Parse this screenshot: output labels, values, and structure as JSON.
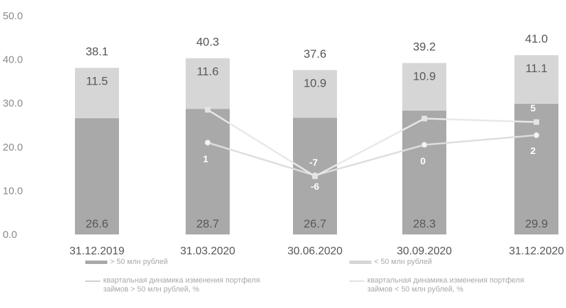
{
  "chart_data": {
    "type": "bar",
    "stacked": true,
    "categories": [
      "31.12.2019",
      "31.03.2020",
      "30.06.2020",
      "30.09.2020",
      "31.12.2020"
    ],
    "yticks": [
      "0.0",
      "10.0",
      "20.0",
      "30.0",
      "40.0",
      "50.0"
    ],
    "ylim": [
      0,
      50
    ],
    "grid": false,
    "legend_position": "bottom",
    "series": [
      {
        "name": "> 50 млн рублей",
        "type": "bar",
        "color": "#a9a9a9",
        "values": [
          26.6,
          28.7,
          26.7,
          28.3,
          29.9
        ],
        "labels": [
          "26.6",
          "28.7",
          "26.7",
          "28.3",
          "29.9"
        ]
      },
      {
        "name": "< 50 млн рублей",
        "type": "bar",
        "color": "#d6d6d6",
        "values": [
          11.5,
          11.6,
          10.9,
          10.9,
          11.1
        ],
        "labels": [
          "11.5",
          "11.6",
          "10.9",
          "10.9",
          "11.1"
        ]
      },
      {
        "name": "квартальная динамика изменения портфеля займов > 50 млн рублей, %",
        "type": "line",
        "color": "#dedede",
        "points": [
          null,
          21.0,
          13.5,
          20.5,
          22.7
        ],
        "labels": [
          "",
          "1",
          "-6",
          "0",
          "2"
        ]
      },
      {
        "name": "квартальная динамика изменения портфеля займов < 50 млн рублей, %",
        "type": "line",
        "color": "#e8e8e8",
        "points": [
          null,
          28.5,
          13.3,
          26.5,
          25.7
        ],
        "labels": [
          "",
          "",
          "-7",
          "",
          "5"
        ]
      }
    ],
    "totals": [
      "38.1",
      "40.3",
      "37.6",
      "39.2",
      "41.0"
    ]
  },
  "legend": [
    {
      "text": "> 50 млн рублей",
      "kind": "bar",
      "color": "#a9a9a9"
    },
    {
      "text": "< 50 млн рублей",
      "kind": "bar",
      "color": "#d6d6d6"
    },
    {
      "text": "квартальная динамика изменения портфеля займов > 50 млн рублей, %",
      "kind": "line",
      "color": "#cfcfcf"
    },
    {
      "text": "квартальная динамика изменения портфеля займов < 50 млн рублей, %",
      "kind": "line",
      "color": "#e0e0e0"
    }
  ]
}
